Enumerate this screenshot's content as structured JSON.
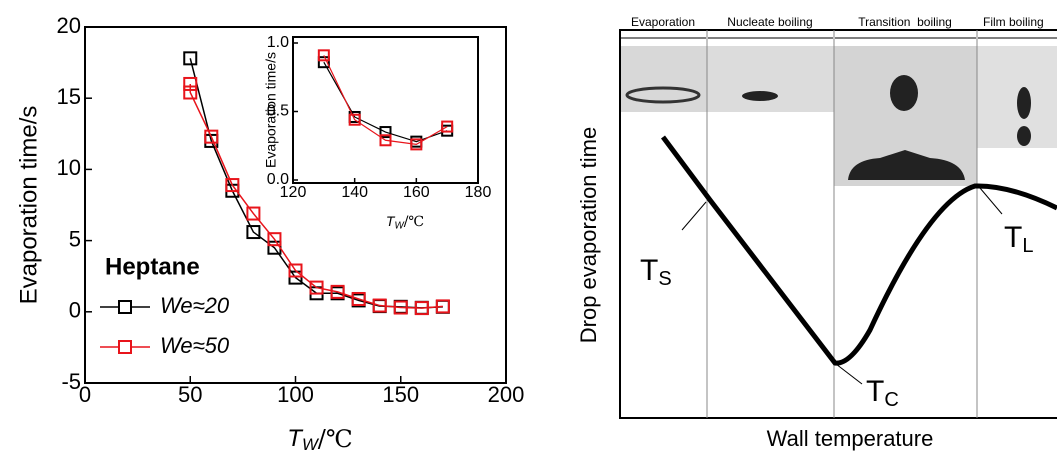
{
  "chart_data": [
    {
      "type": "line",
      "x_label": {
        "symbol": "T",
        "sub": "W",
        "unit": "/℃"
      },
      "y_label": "Evaporation time/s",
      "annotation": "Heptane",
      "xlim": [
        0,
        200
      ],
      "xticks": [
        0,
        50,
        100,
        150,
        200
      ],
      "ylim": [
        -5,
        20
      ],
      "yticks": [
        -5,
        0,
        5,
        10,
        15,
        20
      ],
      "series": [
        {
          "name": "We≈20",
          "color": "#000000",
          "x": [
            50,
            60,
            70,
            80,
            90,
            100,
            110,
            120,
            130,
            140,
            150,
            160,
            170
          ],
          "values": [
            17.8,
            12.0,
            8.5,
            5.6,
            4.5,
            2.4,
            1.3,
            1.3,
            0.8,
            0.4,
            0.35,
            0.28,
            0.35
          ]
        },
        {
          "name": "We≈50",
          "color": "#e8141b",
          "x": [
            50,
            50,
            60,
            70,
            80,
            90,
            100,
            110,
            120,
            130,
            140,
            150,
            160,
            170
          ],
          "values": [
            16.0,
            15.4,
            12.3,
            8.9,
            6.9,
            5.1,
            2.9,
            1.7,
            1.4,
            0.9,
            0.44,
            0.3,
            0.26,
            0.38
          ]
        }
      ]
    },
    {
      "type": "line",
      "x_label": {
        "symbol": "T",
        "sub": "W",
        "unit": "/℃"
      },
      "y_label": "Evaporation time/s",
      "xlim": [
        120,
        180
      ],
      "xticks": [
        120,
        140,
        160,
        180
      ],
      "ylim": [
        0,
        1.0
      ],
      "yticks": [
        {
          "value": 0,
          "label": "0.0"
        },
        {
          "value": 0.5,
          "label": "0.5"
        },
        {
          "value": 1.0,
          "label": "1.0"
        }
      ],
      "series": [
        {
          "name": "We≈20",
          "color": "#000000",
          "x": [
            130,
            140,
            150,
            160,
            170
          ],
          "values": [
            0.86,
            0.46,
            0.35,
            0.28,
            0.36
          ]
        },
        {
          "name": "We≈50",
          "color": "#e8141b",
          "x": [
            130,
            140,
            150,
            160,
            170
          ],
          "values": [
            0.91,
            0.44,
            0.29,
            0.26,
            0.39
          ]
        }
      ]
    }
  ],
  "schematic": {
    "y_label": "Drop evaporation time",
    "x_label": "Wall temperature",
    "regions": [
      "Evaporation",
      "Nucleate boiling",
      "Transition  boiling",
      "Film boiling"
    ],
    "points": [
      {
        "symbol": "T",
        "sub": "S"
      },
      {
        "symbol": "T",
        "sub": "C"
      },
      {
        "symbol": "T",
        "sub": "L"
      }
    ]
  }
}
